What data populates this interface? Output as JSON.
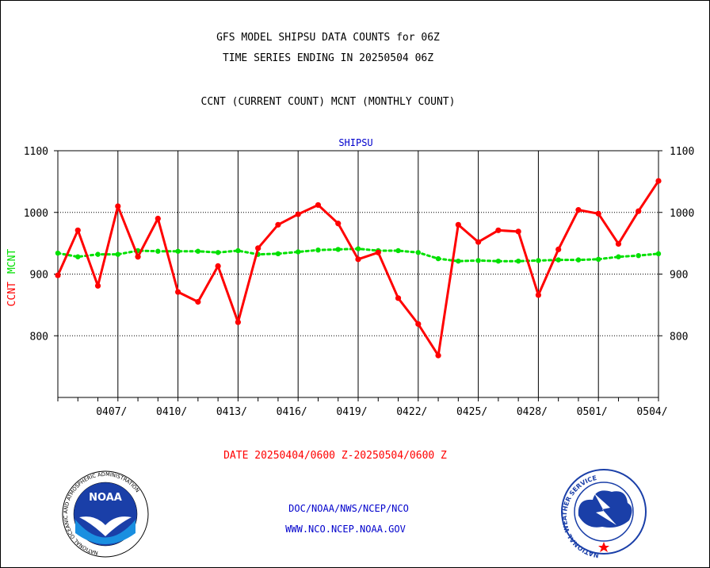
{
  "chart_data": {
    "type": "line",
    "title_lines": [
      "GFS MODEL SHIPSU DATA COUNTS for 06Z",
      "TIME SERIES ENDING IN 20250504 06Z"
    ],
    "subtitle": "CCNT (CURRENT COUNT) MCNT (MONTHLY COUNT)",
    "panel_label": "SHIPSU",
    "ylabel_ccnt": "CCNT",
    "ylabel_mcnt": "MCNT",
    "ylim": [
      700,
      1100
    ],
    "yticks": [
      1100,
      1000,
      900,
      800
    ],
    "x_range": [
      0,
      30
    ],
    "x_tick_labels": [
      "0407/",
      "0410/",
      "0413/",
      "0416/",
      "0419/",
      "0422/",
      "0425/",
      "0428/",
      "0501/",
      "0504/"
    ],
    "x_tick_positions": [
      3,
      6,
      9,
      12,
      15,
      18,
      21,
      24,
      27,
      30
    ],
    "grid": true,
    "date_range": "DATE 20250404/0600 Z-20250504/0600 Z",
    "series": [
      {
        "name": "CCNT",
        "color": "#ff0000",
        "style": "solid",
        "x": [
          0,
          1,
          2,
          3,
          4,
          5,
          6,
          7,
          8,
          9,
          10,
          11,
          12,
          13,
          14,
          15,
          16,
          17,
          18,
          19,
          20,
          21,
          22,
          23,
          24,
          25,
          26,
          27,
          28,
          29,
          30
        ],
        "values": [
          898,
          971,
          881,
          1010,
          928,
          990,
          871,
          855,
          913,
          822,
          942,
          980,
          997,
          1012,
          982,
          924,
          935,
          861,
          819,
          768,
          980,
          952,
          971,
          969,
          866,
          940,
          1004,
          998,
          949,
          1002,
          1051
        ]
      },
      {
        "name": "MCNT",
        "color": "#00e000",
        "style": "dotted",
        "x": [
          0,
          1,
          2,
          3,
          4,
          5,
          6,
          7,
          8,
          9,
          10,
          11,
          12,
          13,
          14,
          15,
          16,
          17,
          18,
          19,
          20,
          21,
          22,
          23,
          24,
          25,
          26,
          27,
          28,
          29,
          30
        ],
        "values": [
          934,
          928,
          932,
          932,
          938,
          937,
          937,
          937,
          935,
          938,
          932,
          933,
          936,
          939,
          940,
          941,
          938,
          938,
          935,
          925,
          921,
          922,
          921,
          921,
          922,
          923,
          923,
          924,
          928,
          930,
          933
        ]
      }
    ]
  },
  "footer": {
    "line1": "DOC/NOAA/NWS/NCEP/NCO",
    "line2": "WWW.NCO.NCEP.NOAA.GOV"
  },
  "logos": {
    "noaa_text": "NOAA",
    "noaa_ring_text": "NATIONAL OCEANIC AND ATMOSPHERIC ADMINISTRATION",
    "noaa_bottom_text": "U.S. DEPARTMENT OF COMMERCE",
    "nws_ring_text": "NATIONAL WEATHER SERVICE"
  },
  "colors": {
    "title": "#000000",
    "date": "#ff0000",
    "footer": "#0000cc",
    "panel_label": "#0000cc",
    "ccnt": "#ff0000",
    "mcnt": "#00e000"
  }
}
